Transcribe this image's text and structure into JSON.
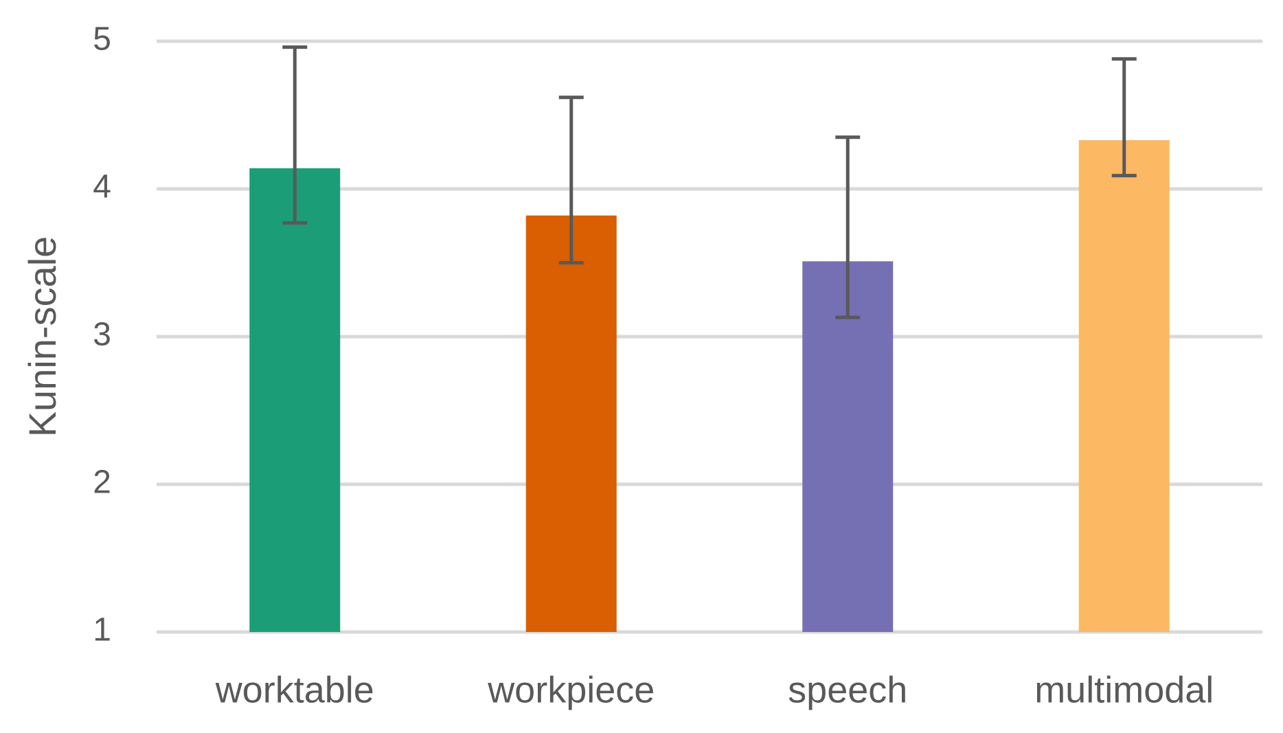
{
  "chart_data": {
    "type": "bar",
    "y_label": "Kunin-scale",
    "categories": [
      "worktable",
      "workpiece",
      "speech",
      "multimodal"
    ],
    "values": [
      4.14,
      3.82,
      3.51,
      4.33
    ],
    "error_minus": [
      0.37,
      0.32,
      0.38,
      0.24
    ],
    "error_plus": [
      0.82,
      0.8,
      0.84,
      0.55
    ],
    "colors": [
      "#1b9e77",
      "#d95f02",
      "#7570b3",
      "#fdb863"
    ],
    "error_color": "#595959",
    "ylim": [
      1,
      5
    ],
    "yticks": [
      1,
      2,
      3,
      4,
      5
    ],
    "grid": true
  }
}
